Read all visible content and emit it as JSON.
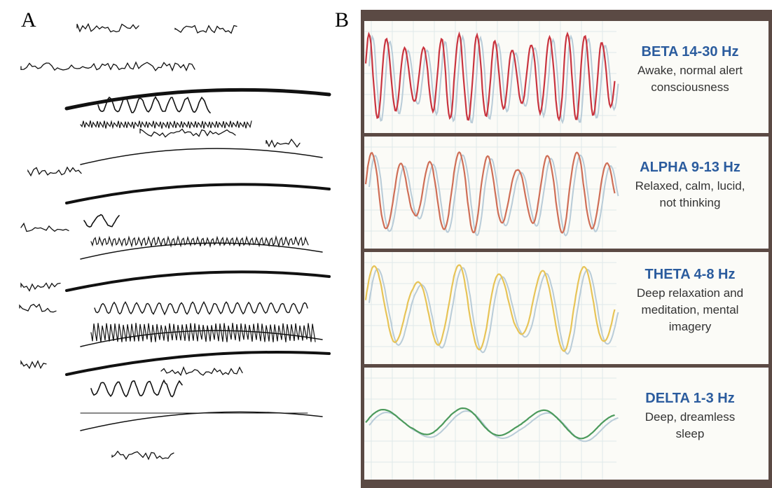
{
  "panels": [
    {
      "label": "A"
    },
    {
      "label": "B",
      "bands": [
        {
          "name": "BETA 14-30 Hz",
          "description": [
            "Awake, normal alert",
            "consciousness"
          ]
        },
        {
          "name": "ALPHA 9-13 Hz",
          "description": [
            "Relaxed, calm, lucid,",
            "not thinking"
          ]
        },
        {
          "name": "THETA 4-8 Hz",
          "description": [
            "Deep relaxation and",
            "meditation, mental",
            "imagery"
          ]
        },
        {
          "name": "DELTA 1-3 Hz",
          "description": [
            "Deep, dreamless",
            "sleep"
          ]
        }
      ]
    }
  ]
}
